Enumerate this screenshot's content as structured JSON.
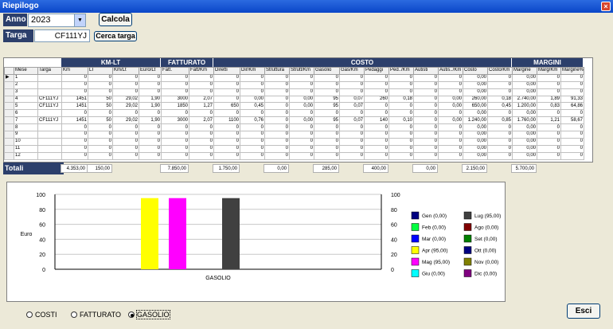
{
  "window": {
    "title": "Riepilogo",
    "close": "×"
  },
  "form": {
    "anno_label": "Anno",
    "anno_value": "2023",
    "calcola": "Calcola",
    "targa_label": "Targa",
    "targa_value": "CF111YJ",
    "cerca_targa": "Cerca targa",
    "esci": "Esci"
  },
  "groups": [
    {
      "label": "KM-LT",
      "start": 3,
      "span": 4
    },
    {
      "label": "FATTURATO",
      "start": 7,
      "span": 2
    },
    {
      "label": "COSTO",
      "start": 9,
      "span": 12
    },
    {
      "label": "MARGINI",
      "start": 21,
      "span": 3
    }
  ],
  "columns": [
    "",
    "Mese",
    "Targa",
    "Km",
    "LT",
    "Km/Lt",
    "Euro/Lt",
    "Fatt.",
    "Fatt/Km",
    "Diretti",
    "Dir/Km",
    "Struttura",
    "Strutt/Km",
    "Gasolio",
    "Gas/Km",
    "Pedaggi",
    "Ped../Km",
    "Autisti",
    "Autis../Km",
    "Costo",
    "Costo/Km",
    "Margine",
    "Marg/Km",
    "Margine%"
  ],
  "rows": [
    [
      "▶",
      "1",
      "",
      "0",
      "0",
      "0",
      "0",
      "0",
      "0",
      "0",
      "0",
      "0",
      "0",
      "0",
      "0",
      "0",
      "0",
      "0",
      "0",
      "0,00",
      "0",
      "0,00",
      "0",
      "0"
    ],
    [
      "",
      "2",
      "",
      "0",
      "0",
      "0",
      "0",
      "0",
      "0",
      "0",
      "0",
      "0",
      "0",
      "0",
      "0",
      "0",
      "0",
      "0",
      "0",
      "0,00",
      "0",
      "0,00",
      "0",
      "0"
    ],
    [
      "",
      "3",
      "",
      "0",
      "0",
      "0",
      "0",
      "0",
      "0",
      "0",
      "0",
      "0",
      "0",
      "0",
      "0",
      "0",
      "0",
      "0",
      "0",
      "0,00",
      "0",
      "0,00",
      "0",
      "0"
    ],
    [
      "",
      "4",
      "CF111YJ",
      "1451",
      "50",
      "29,02",
      "1,90",
      "3000",
      "2,07",
      "0",
      "0,00",
      "0",
      "0,00",
      "95",
      "0,07",
      "260",
      "0,18",
      "0",
      "0,00",
      "260,00",
      "0,18",
      "2.740,00",
      "1,89",
      "91,33"
    ],
    [
      "",
      "5",
      "CF111YJ",
      "1451",
      "50",
      "29,02",
      "1,90",
      "1850",
      "1,27",
      "650",
      "0,45",
      "0",
      "0,00",
      "95",
      "0,07",
      "0",
      "0",
      "0",
      "0,00",
      "650,00",
      "0,45",
      "1.200,00",
      "0,83",
      "64,86"
    ],
    [
      "",
      "6",
      "",
      "0",
      "0",
      "0",
      "0",
      "0",
      "0",
      "0",
      "0",
      "0",
      "0",
      "0",
      "0",
      "0",
      "0",
      "0",
      "0",
      "0,00",
      "0",
      "0,00",
      "0",
      "0"
    ],
    [
      "",
      "7",
      "CF111YJ",
      "1451",
      "50",
      "29,02",
      "1,90",
      "3000",
      "2,07",
      "1100",
      "0,76",
      "0",
      "0,00",
      "95",
      "0,07",
      "140",
      "0,10",
      "0",
      "0,00",
      "1.240,00",
      "0,85",
      "1.760,00",
      "1,21",
      "58,67"
    ],
    [
      "",
      "8",
      "",
      "0",
      "0",
      "0",
      "0",
      "0",
      "0",
      "0",
      "0",
      "0",
      "0",
      "0",
      "0",
      "0",
      "0",
      "0",
      "0",
      "0,00",
      "0",
      "0,00",
      "0",
      "0"
    ],
    [
      "",
      "9",
      "",
      "0",
      "0",
      "0",
      "0",
      "0",
      "0",
      "0",
      "0",
      "0",
      "0",
      "0",
      "0",
      "0",
      "0",
      "0",
      "0",
      "0,00",
      "0",
      "0,00",
      "0",
      "0"
    ],
    [
      "",
      "10",
      "",
      "0",
      "0",
      "0",
      "0",
      "0",
      "0",
      "0",
      "0",
      "0",
      "0",
      "0",
      "0",
      "0",
      "0",
      "0",
      "0",
      "0,00",
      "0",
      "0,00",
      "0",
      "0"
    ],
    [
      "",
      "11",
      "",
      "0",
      "0",
      "0",
      "0",
      "0",
      "0",
      "0",
      "0",
      "0",
      "0",
      "0",
      "0",
      "0",
      "0",
      "0",
      "0",
      "0,00",
      "0",
      "0,00",
      "0",
      "0"
    ],
    [
      "",
      "12",
      "",
      "0",
      "0",
      "0",
      "0",
      "0",
      "0",
      "0",
      "0",
      "0",
      "0",
      "0",
      "0",
      "0",
      "0",
      "0",
      "0",
      "0,00",
      "0",
      "0,00",
      "0",
      "0"
    ]
  ],
  "totals": {
    "label": "Totali",
    "items": [
      {
        "col": 3,
        "value": "4.353,00"
      },
      {
        "col": 4,
        "value": "150,00"
      },
      {
        "col": 7,
        "value": "7.850,00"
      },
      {
        "col": 9,
        "value": "1.750,00"
      },
      {
        "col": 11,
        "value": "0,00"
      },
      {
        "col": 13,
        "value": "285,00"
      },
      {
        "col": 15,
        "value": "400,00"
      },
      {
        "col": 17,
        "value": "0,00"
      },
      {
        "col": 19,
        "value": "2.150,00"
      },
      {
        "col": 21,
        "value": "5.700,00"
      }
    ]
  },
  "chart_data": {
    "type": "bar",
    "categories": [
      "GASOLIO"
    ],
    "ylabel": "Euro",
    "ylim": [
      0,
      100
    ],
    "yticks": [
      "0",
      "20",
      "40",
      "60",
      "80",
      "100"
    ],
    "grid": true,
    "legend_position": "right",
    "series": [
      {
        "name": "Gen (0,00)",
        "value": 0,
        "color": "#000080"
      },
      {
        "name": "Feb (0,00)",
        "value": 0,
        "color": "#00ff40"
      },
      {
        "name": "Mar (0,00)",
        "value": 0,
        "color": "#0000ff"
      },
      {
        "name": "Apr (95,00)",
        "value": 95,
        "color": "#ffff00"
      },
      {
        "name": "Mag (95,00)",
        "value": 95,
        "color": "#ff00ff"
      },
      {
        "name": "Giu (0,00)",
        "value": 0,
        "color": "#00ffff"
      },
      {
        "name": "Lug (95,00)",
        "value": 95,
        "color": "#404040"
      },
      {
        "name": "Ago (0,00)",
        "value": 0,
        "color": "#800000"
      },
      {
        "name": "Set (0,00)",
        "value": 0,
        "color": "#008000"
      },
      {
        "name": "Ott (0,00)",
        "value": 0,
        "color": "#000080"
      },
      {
        "name": "Nov (0,00)",
        "value": 0,
        "color": "#808000"
      },
      {
        "name": "Dic (0,00)",
        "value": 0,
        "color": "#800080"
      }
    ]
  },
  "radios": [
    {
      "label": "COSTI",
      "checked": false
    },
    {
      "label": "FATTURATO",
      "checked": false
    },
    {
      "label": "GASOLIO",
      "checked": true
    }
  ]
}
